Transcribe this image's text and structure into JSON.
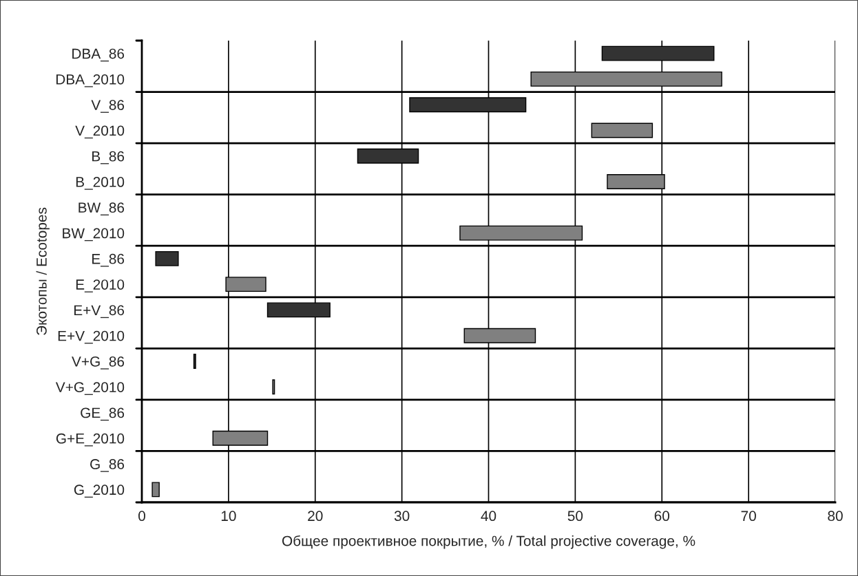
{
  "chart_data": {
    "type": "bar",
    "orientation": "horizontal",
    "categories": [
      "DBA_86",
      "DBA_2010",
      "V_86",
      "V_2010",
      "B_86",
      "B_2010",
      "BW_86",
      "BW_2010",
      "E_86",
      "E_2010",
      "E+V_86",
      "E+V_2010",
      "V+G_86",
      "V+G_2010",
      "GE_86",
      "G+E_2010",
      "G_86",
      "G_2010"
    ],
    "base": [
      53.1,
      44.9,
      30.9,
      51.9,
      24.9,
      53.7,
      null,
      36.7,
      1.6,
      9.7,
      14.5,
      37.2,
      6.0,
      15.1,
      null,
      8.2,
      null,
      1.2
    ],
    "values": [
      12.9,
      22.0,
      13.4,
      7.0,
      7.0,
      6.6,
      null,
      14.1,
      2.6,
      4.6,
      7.2,
      8.2,
      0.2,
      0.2,
      null,
      6.3,
      null,
      0.8
    ],
    "colors": [
      "#333333",
      "#808080",
      "#333333",
      "#808080",
      "#333333",
      "#808080",
      "#333333",
      "#808080",
      "#333333",
      "#808080",
      "#333333",
      "#808080",
      "#333333",
      "#808080",
      "#333333",
      "#808080",
      "#333333",
      "#808080"
    ],
    "xlim": [
      0,
      80
    ],
    "xticks": [
      0,
      10,
      20,
      30,
      40,
      50,
      60,
      70,
      80
    ],
    "xlabel": "Общее проективное покрытие, % / Total projective coverage, %",
    "ylabel": "Экотопы / Ecotopes",
    "grid": true
  }
}
